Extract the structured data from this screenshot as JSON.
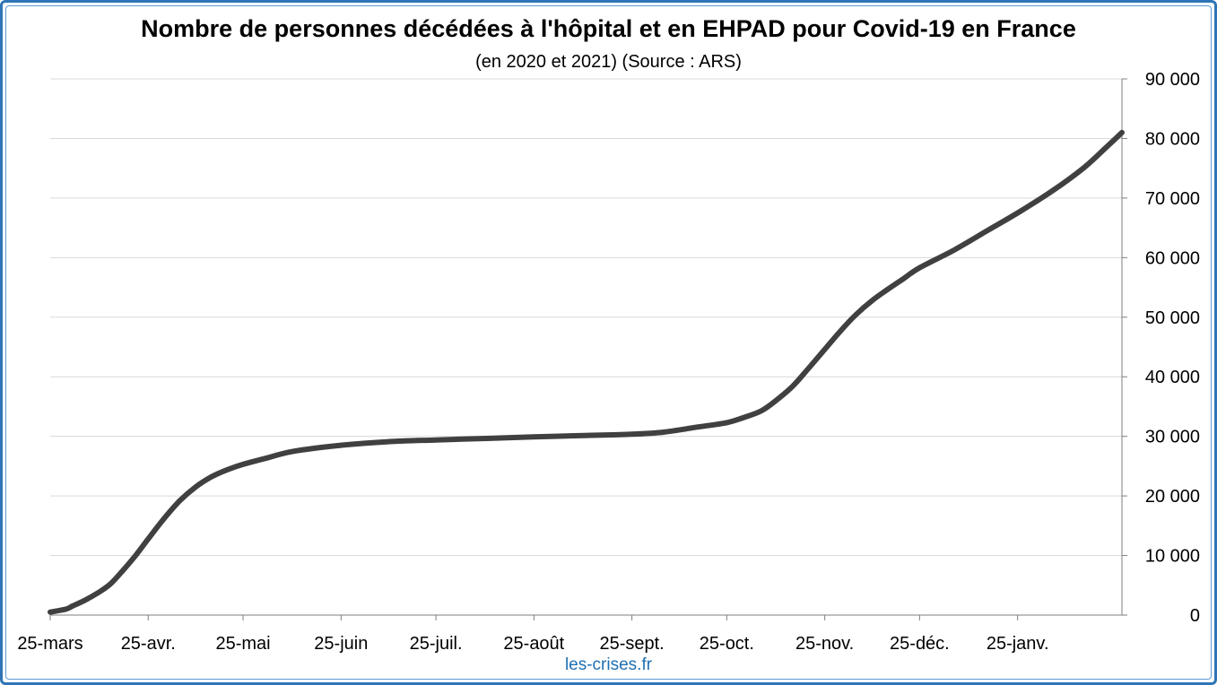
{
  "watermark": "les-crises.fr",
  "colors": {
    "frame": "#2E75B6",
    "line": "#404040",
    "grid": "#D9D9D9",
    "watermark": "#1F6FB2"
  },
  "chart_data": {
    "type": "line",
    "title": "Nombre de personnes décédées à l'hôpital et en EHPAD pour Covid-19 en France",
    "subtitle": "(en 2020 et 2021) (Source : ARS)",
    "x_tick_labels": [
      "25-mars",
      "25-avr.",
      "25-mai",
      "25-juin",
      "25-juil.",
      "25-août",
      "25-sept.",
      "25-oct.",
      "25-nov.",
      "25-déc.",
      "25-janv."
    ],
    "x_tick_dates": [
      "2020-03-25",
      "2020-04-25",
      "2020-05-25",
      "2020-06-25",
      "2020-07-25",
      "2020-08-25",
      "2020-09-25",
      "2020-10-25",
      "2020-11-25",
      "2020-12-25",
      "2021-01-25"
    ],
    "xlim": [
      "2020-03-25",
      "2021-02-27"
    ],
    "y_axis_position": "right",
    "ylim": [
      0,
      90000
    ],
    "y_ticks": [
      0,
      10000,
      20000,
      30000,
      40000,
      50000,
      60000,
      70000,
      80000,
      90000
    ],
    "y_tick_labels": [
      "0",
      "10 000",
      "20 000",
      "30 000",
      "40 000",
      "50 000",
      "60 000",
      "70 000",
      "80 000",
      "90 000"
    ],
    "grid": "horizontal",
    "series": [
      {
        "x": [
          "2020-03-25",
          "2020-03-30",
          "2020-04-01",
          "2020-04-05",
          "2020-04-09",
          "2020-04-13",
          "2020-04-17",
          "2020-04-21",
          "2020-04-25",
          "2020-04-30",
          "2020-05-05",
          "2020-05-10",
          "2020-05-15",
          "2020-05-20",
          "2020-05-25",
          "2020-06-01",
          "2020-06-10",
          "2020-06-25",
          "2020-07-10",
          "2020-07-25",
          "2020-08-10",
          "2020-08-25",
          "2020-09-10",
          "2020-09-25",
          "2020-10-05",
          "2020-10-15",
          "2020-10-25",
          "2020-10-30",
          "2020-11-05",
          "2020-11-10",
          "2020-11-15",
          "2020-11-20",
          "2020-11-25",
          "2020-11-30",
          "2020-12-05",
          "2020-12-10",
          "2020-12-15",
          "2020-12-20",
          "2020-12-25",
          "2021-01-05",
          "2021-01-15",
          "2021-01-25",
          "2021-02-05",
          "2021-02-15",
          "2021-02-22",
          "2021-02-27"
        ],
        "y": [
          500,
          1000,
          1500,
          2500,
          3700,
          5200,
          7500,
          10000,
          12800,
          16200,
          19200,
          21500,
          23200,
          24400,
          25300,
          26300,
          27500,
          28500,
          29100,
          29400,
          29650,
          29900,
          30150,
          30350,
          30700,
          31500,
          32300,
          33100,
          34300,
          36200,
          38500,
          41500,
          44600,
          47700,
          50500,
          52800,
          54700,
          56500,
          58300,
          61300,
          64400,
          67500,
          71200,
          75100,
          78500,
          81000
        ]
      }
    ]
  }
}
